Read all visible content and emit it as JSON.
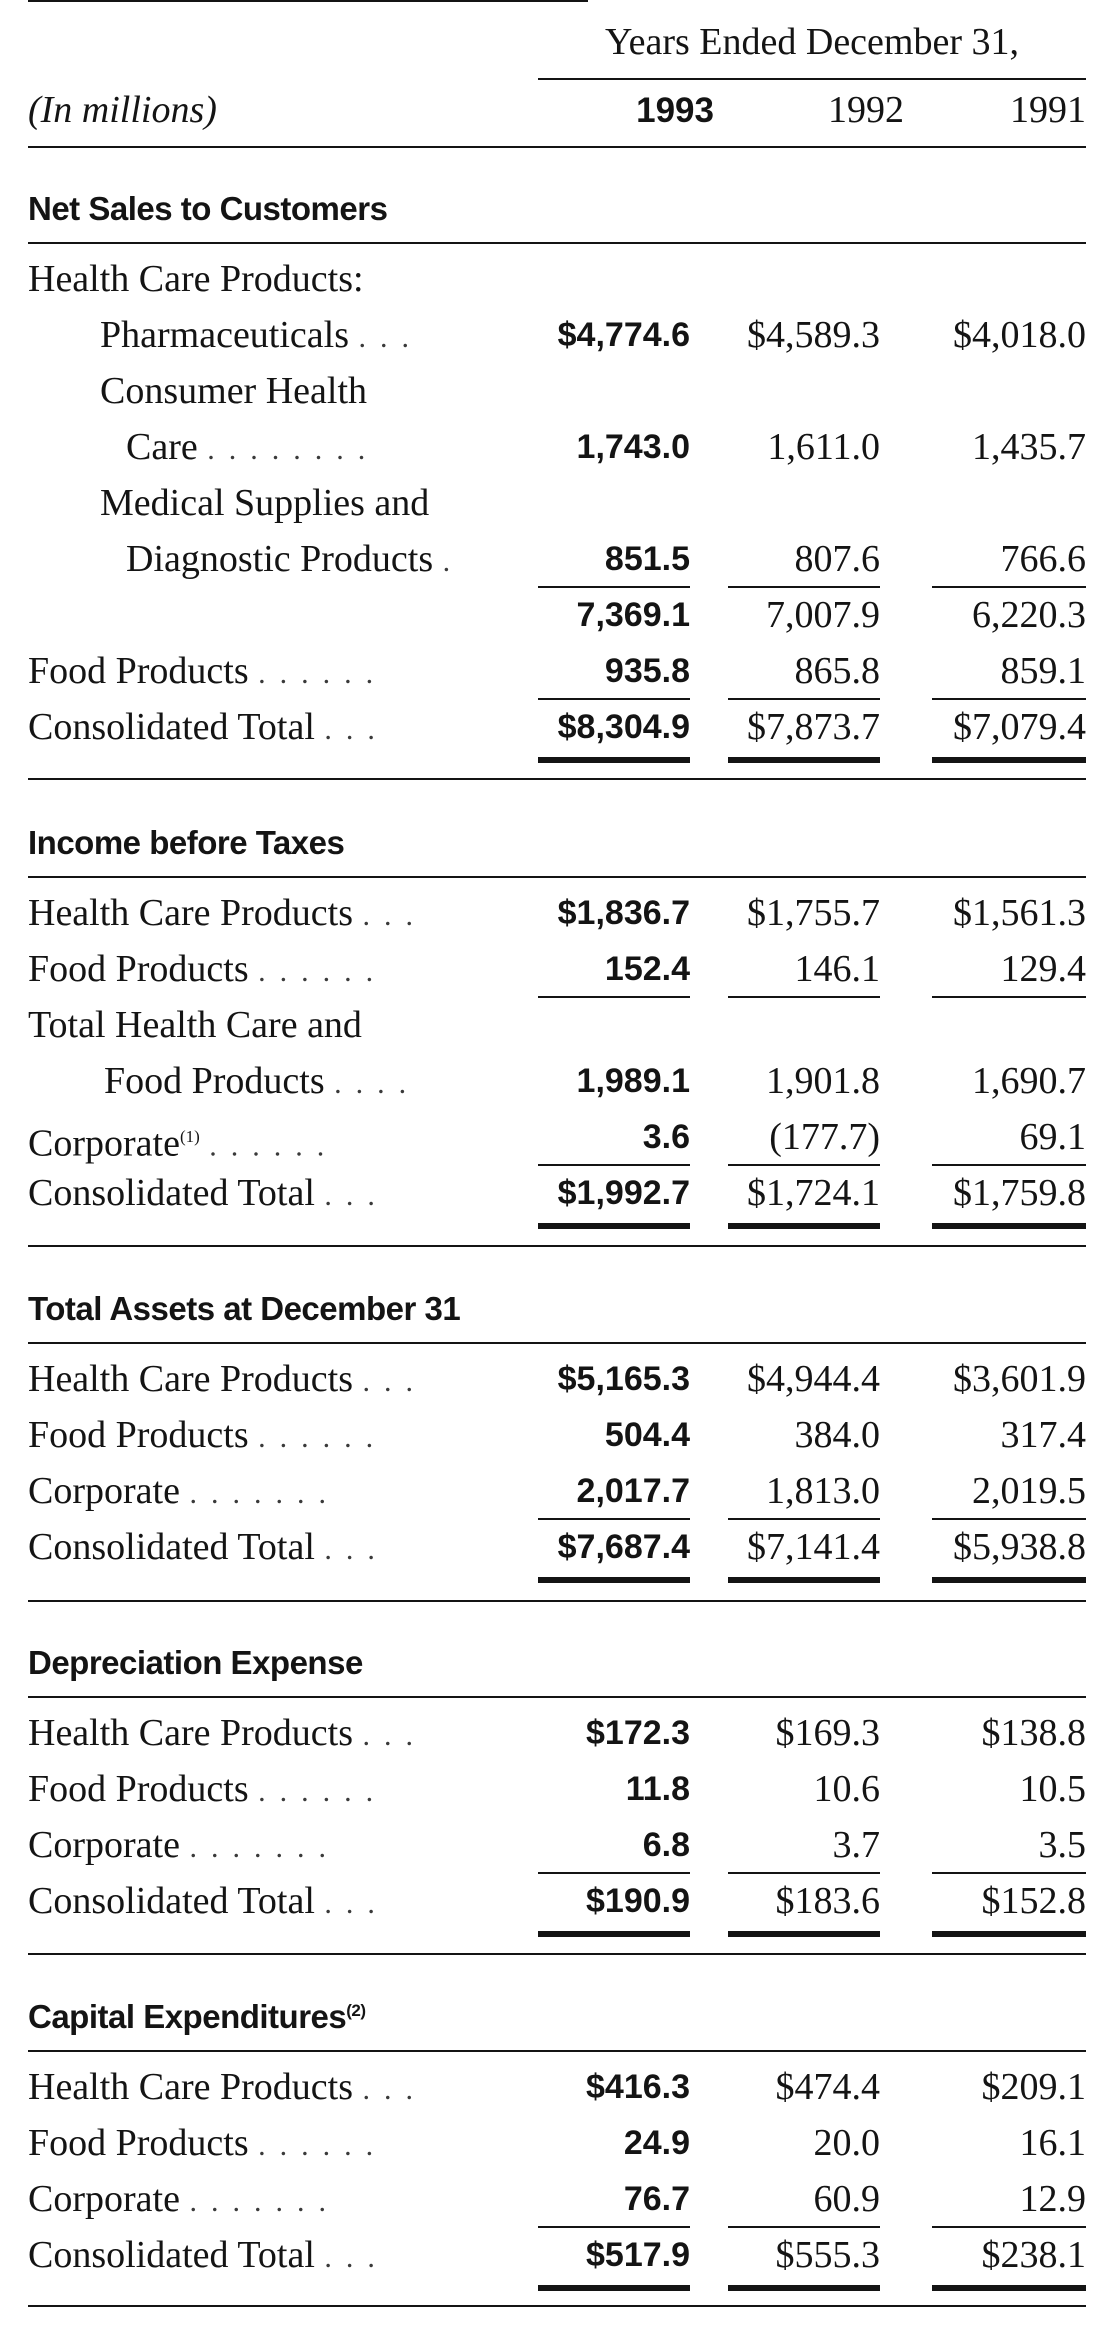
{
  "header": {
    "years_ended": "Years Ended December 31,",
    "units": "(In millions)",
    "years": [
      "1993",
      "1992",
      "1991"
    ]
  },
  "net_sales": {
    "title": "Net Sales to Customers",
    "group_label": "Health Care Products:",
    "pharmaceuticals": {
      "label": "Pharmaceuticals",
      "values": [
        "$4,774.6",
        "$4,589.3",
        "$4,018.0"
      ]
    },
    "consumer_health_line1": "Consumer Health",
    "consumer_health": {
      "label": "Care",
      "values": [
        "1,743.0",
        "1,611.0",
        "1,435.7"
      ]
    },
    "medical_line1": "Medical Supplies and",
    "medical": {
      "label": "Diagnostic Products",
      "values": [
        "851.5",
        "807.6",
        "766.6"
      ]
    },
    "health_subtotal": {
      "values": [
        "7,369.1",
        "7,007.9",
        "6,220.3"
      ]
    },
    "food": {
      "label": "Food Products",
      "values": [
        "935.8",
        "865.8",
        "859.1"
      ]
    },
    "total": {
      "label": "Consolidated Total",
      "values": [
        "$8,304.9",
        "$7,873.7",
        "$7,079.4"
      ]
    }
  },
  "income": {
    "title": "Income before Taxes",
    "health": {
      "label": "Health Care Products",
      "values": [
        "$1,836.7",
        "$1,755.7",
        "$1,561.3"
      ]
    },
    "food": {
      "label": "Food Products",
      "values": [
        "152.4",
        "146.1",
        "129.4"
      ]
    },
    "total_hf_line1": "Total Health Care and",
    "total_hf": {
      "label": "Food Products",
      "values": [
        "1,989.1",
        "1,901.8",
        "1,690.7"
      ]
    },
    "corporate": {
      "label": "Corporate",
      "footnote": "(1)",
      "values": [
        "3.6",
        "(177.7)",
        "69.1"
      ]
    },
    "total": {
      "label": "Consolidated Total",
      "values": [
        "$1,992.7",
        "$1,724.1",
        "$1,759.8"
      ]
    }
  },
  "assets": {
    "title": "Total Assets at December 31",
    "health": {
      "label": "Health Care Products",
      "values": [
        "$5,165.3",
        "$4,944.4",
        "$3,601.9"
      ]
    },
    "food": {
      "label": "Food Products",
      "values": [
        "504.4",
        "384.0",
        "317.4"
      ]
    },
    "corporate": {
      "label": "Corporate",
      "values": [
        "2,017.7",
        "1,813.0",
        "2,019.5"
      ]
    },
    "total": {
      "label": "Consolidated Total",
      "values": [
        "$7,687.4",
        "$7,141.4",
        "$5,938.8"
      ]
    }
  },
  "depreciation": {
    "title": "Depreciation Expense",
    "health": {
      "label": "Health Care Products",
      "values": [
        "$172.3",
        "$169.3",
        "$138.8"
      ]
    },
    "food": {
      "label": "Food Products",
      "values": [
        "11.8",
        "10.6",
        "10.5"
      ]
    },
    "corporate": {
      "label": "Corporate",
      "values": [
        "6.8",
        "3.7",
        "3.5"
      ]
    },
    "total": {
      "label": "Consolidated Total",
      "values": [
        "$190.9",
        "$183.6",
        "$152.8"
      ]
    }
  },
  "capex": {
    "title": "Capital Expenditures",
    "footnote": "(2)",
    "health": {
      "label": "Health Care Products",
      "values": [
        "$416.3",
        "$474.4",
        "$209.1"
      ]
    },
    "food": {
      "label": "Food Products",
      "values": [
        "24.9",
        "20.0",
        "16.1"
      ]
    },
    "corporate": {
      "label": "Corporate",
      "values": [
        "76.7",
        "60.9",
        "12.9"
      ]
    },
    "total": {
      "label": "Consolidated Total",
      "values": [
        "$517.9",
        "$555.3",
        "$238.1"
      ]
    }
  }
}
